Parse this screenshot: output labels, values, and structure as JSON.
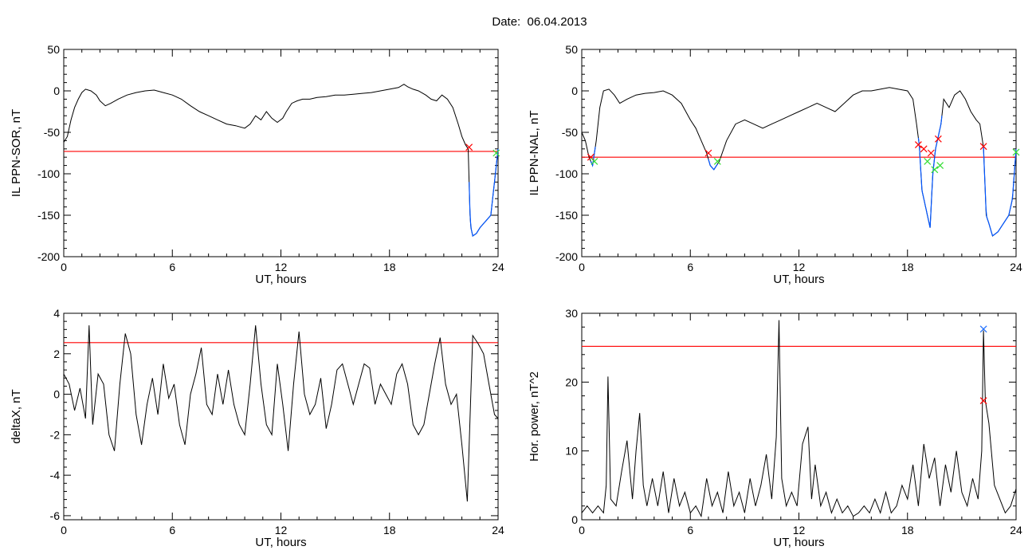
{
  "title": "Date:  06.04.2013",
  "colors": {
    "series": "#000000",
    "threshold": "#ff0000",
    "event_line": "#0055ff",
    "blue_mark": "#1f6fff",
    "green_mark": "#33dd33",
    "red_mark": "#ff0000"
  },
  "chart_data": [
    {
      "type": "line",
      "ylabel": "IL PPN-SOR, nT",
      "xlabel": "UT, hours",
      "xlim": [
        0,
        24
      ],
      "ylim": [
        -200,
        50
      ],
      "xticks": [
        0,
        6,
        12,
        18,
        24
      ],
      "yticks": [
        -200,
        -150,
        -100,
        -50,
        0,
        50
      ],
      "threshold": -73,
      "event_marks": [
        {
          "x": 22.4,
          "y": -68,
          "color": "red"
        },
        {
          "x": 23.9,
          "y": -75,
          "color": "green"
        }
      ],
      "event_ranges": [
        [
          22.4,
          24
        ]
      ],
      "series": {
        "x": [
          0,
          0.2,
          0.4,
          0.6,
          0.8,
          1,
          1.2,
          1.5,
          1.8,
          2,
          2.3,
          2.6,
          3,
          3.5,
          4,
          4.5,
          5,
          5.5,
          6,
          6.5,
          7,
          7.5,
          8,
          8.5,
          9,
          9.5,
          10,
          10.3,
          10.6,
          10.9,
          11.2,
          11.5,
          11.8,
          12.1,
          12.3,
          12.6,
          12.9,
          13.2,
          13.6,
          14,
          14.5,
          15,
          15.5,
          16,
          16.5,
          17,
          17.5,
          18,
          18.5,
          18.8,
          19,
          19.3,
          19.6,
          20,
          20.3,
          20.6,
          20.9,
          21.2,
          21.5,
          21.8,
          22,
          22.2,
          22.35,
          22.45,
          22.5,
          22.6,
          22.8,
          23,
          23.2,
          23.4,
          23.6,
          23.8,
          24
        ],
        "y": [
          -62,
          -55,
          -35,
          -20,
          -10,
          -2,
          2,
          0,
          -5,
          -12,
          -18,
          -15,
          -10,
          -5,
          -2,
          0,
          1,
          -2,
          -5,
          -10,
          -18,
          -25,
          -30,
          -35,
          -40,
          -42,
          -45,
          -40,
          -30,
          -35,
          -25,
          -33,
          -38,
          -33,
          -25,
          -15,
          -12,
          -10,
          -10,
          -8,
          -7,
          -5,
          -5,
          -4,
          -3,
          -2,
          0,
          2,
          4,
          8,
          5,
          2,
          0,
          -5,
          -10,
          -12,
          -5,
          -10,
          -20,
          -40,
          -55,
          -65,
          -70,
          -150,
          -165,
          -175,
          -172,
          -165,
          -160,
          -155,
          -150,
          -110,
          -70
        ]
      }
    },
    {
      "type": "line",
      "ylabel": "IL PPN-NAL, nT",
      "xlabel": "UT, hours",
      "xlim": [
        0,
        24
      ],
      "ylim": [
        -200,
        50
      ],
      "xticks": [
        0,
        6,
        12,
        18,
        24
      ],
      "yticks": [
        -200,
        -150,
        -100,
        -50,
        0,
        50
      ],
      "threshold": -80,
      "event_marks": [
        {
          "x": 0.5,
          "y": -80,
          "color": "red"
        },
        {
          "x": 0.7,
          "y": -85,
          "color": "green"
        },
        {
          "x": 7.0,
          "y": -75,
          "color": "red"
        },
        {
          "x": 7.5,
          "y": -85,
          "color": "green"
        },
        {
          "x": 18.6,
          "y": -65,
          "color": "red"
        },
        {
          "x": 18.9,
          "y": -70,
          "color": "red"
        },
        {
          "x": 19.1,
          "y": -85,
          "color": "green"
        },
        {
          "x": 19.3,
          "y": -75,
          "color": "red"
        },
        {
          "x": 19.5,
          "y": -95,
          "color": "green"
        },
        {
          "x": 19.7,
          "y": -58,
          "color": "red"
        },
        {
          "x": 19.8,
          "y": -90,
          "color": "green"
        },
        {
          "x": 22.2,
          "y": -67,
          "color": "red"
        },
        {
          "x": 24.0,
          "y": -74,
          "color": "green"
        }
      ],
      "event_ranges": [
        [
          0.5,
          0.75
        ],
        [
          7.0,
          7.5
        ],
        [
          18.6,
          19.9
        ],
        [
          22.2,
          24
        ]
      ],
      "series": {
        "x": [
          0,
          0.2,
          0.4,
          0.6,
          0.8,
          1.0,
          1.2,
          1.5,
          1.8,
          2.1,
          2.5,
          3,
          3.5,
          4,
          4.5,
          5,
          5.5,
          6,
          6.3,
          6.6,
          6.9,
          7.1,
          7.3,
          7.6,
          8,
          8.5,
          9,
          9.5,
          10,
          10.5,
          11,
          11.5,
          12,
          12.5,
          13,
          13.5,
          14,
          14.5,
          15,
          15.5,
          16,
          16.5,
          17,
          17.5,
          18,
          18.3,
          18.5,
          18.65,
          18.8,
          18.95,
          19.1,
          19.25,
          19.4,
          19.55,
          19.7,
          19.85,
          20,
          20.3,
          20.6,
          20.9,
          21.2,
          21.5,
          21.8,
          22,
          22.2,
          22.35,
          22.5,
          22.7,
          23,
          23.3,
          23.6,
          23.8,
          24
        ],
        "y": [
          -50,
          -60,
          -80,
          -90,
          -60,
          -20,
          0,
          2,
          -5,
          -15,
          -10,
          -5,
          -3,
          -2,
          0,
          -5,
          -15,
          -35,
          -45,
          -60,
          -75,
          -90,
          -95,
          -85,
          -60,
          -40,
          -35,
          -40,
          -45,
          -40,
          -35,
          -30,
          -25,
          -20,
          -15,
          -20,
          -25,
          -15,
          -5,
          0,
          0,
          2,
          4,
          2,
          0,
          -10,
          -40,
          -65,
          -120,
          -135,
          -150,
          -165,
          -100,
          -70,
          -55,
          -40,
          -10,
          -20,
          -5,
          0,
          -10,
          -25,
          -35,
          -40,
          -68,
          -150,
          -160,
          -175,
          -170,
          -160,
          -150,
          -130,
          -70
        ]
      }
    },
    {
      "type": "line",
      "ylabel": "deltaX, nT",
      "xlabel": "UT, hours",
      "xlim": [
        0,
        24
      ],
      "ylim": [
        -6.2,
        4
      ],
      "xticks": [
        0,
        6,
        12,
        18,
        24
      ],
      "yticks": [
        -6,
        -4,
        -2,
        0,
        2,
        4
      ],
      "threshold": 2.55,
      "series": {
        "x": [
          0,
          0.3,
          0.6,
          0.9,
          1.2,
          1.4,
          1.6,
          1.9,
          2.2,
          2.5,
          2.8,
          3.1,
          3.4,
          3.7,
          4,
          4.3,
          4.6,
          4.9,
          5.2,
          5.5,
          5.8,
          6.1,
          6.4,
          6.7,
          7,
          7.3,
          7.6,
          7.9,
          8.2,
          8.5,
          8.8,
          9.1,
          9.4,
          9.7,
          10,
          10.3,
          10.6,
          10.9,
          11.2,
          11.5,
          11.8,
          12.1,
          12.4,
          12.7,
          13,
          13.3,
          13.6,
          13.9,
          14.2,
          14.5,
          14.8,
          15.1,
          15.4,
          15.7,
          16,
          16.3,
          16.6,
          16.9,
          17.2,
          17.5,
          17.8,
          18.1,
          18.4,
          18.7,
          19,
          19.3,
          19.6,
          19.9,
          20.2,
          20.5,
          20.8,
          21.1,
          21.4,
          21.7,
          22,
          22.3,
          22.6,
          22.9,
          23.2,
          23.5,
          23.8,
          24
        ],
        "y": [
          1.0,
          0.5,
          -0.8,
          0.3,
          -1.2,
          3.4,
          -1.5,
          1.0,
          0.5,
          -2.0,
          -2.8,
          0.5,
          3.0,
          2.0,
          -1.0,
          -2.5,
          -0.5,
          0.8,
          -1.0,
          1.5,
          -0.2,
          0.5,
          -1.5,
          -2.5,
          0,
          1.0,
          2.3,
          -0.5,
          -1.0,
          1.0,
          -0.5,
          1.2,
          -0.5,
          -1.5,
          -2.0,
          0.5,
          3.4,
          0.5,
          -1.5,
          -2.0,
          1.5,
          -0.5,
          -2.8,
          0.5,
          3.1,
          0.0,
          -1.0,
          -0.5,
          0.8,
          -1.7,
          -0.5,
          1.2,
          1.5,
          0.5,
          -0.5,
          0.5,
          1.5,
          1.3,
          -0.5,
          0.5,
          0.0,
          -0.5,
          1.0,
          1.5,
          0.5,
          -1.5,
          -2.0,
          -1.5,
          0.0,
          1.5,
          2.8,
          0.5,
          -0.5,
          0.0,
          -2.5,
          -5.3,
          2.9,
          2.5,
          2.0,
          0.5,
          -1.0,
          -1.2
        ]
      }
    },
    {
      "type": "line",
      "ylabel": "Hor. power, nT^2",
      "xlabel": "UT, hours",
      "xlim": [
        0,
        24
      ],
      "ylim": [
        0,
        30
      ],
      "xticks": [
        0,
        6,
        12,
        18,
        24
      ],
      "yticks": [
        0,
        10,
        20,
        30
      ],
      "threshold": 25.2,
      "event_marks": [
        {
          "x": 22.2,
          "y": 27.7,
          "color": "blue"
        },
        {
          "x": 22.2,
          "y": 17.3,
          "color": "red"
        }
      ],
      "series": {
        "x": [
          0,
          0.3,
          0.6,
          0.9,
          1.2,
          1.35,
          1.45,
          1.6,
          1.9,
          2.2,
          2.5,
          2.8,
          3.0,
          3.2,
          3.4,
          3.6,
          3.9,
          4.2,
          4.5,
          4.8,
          5.1,
          5.4,
          5.7,
          6.0,
          6.3,
          6.6,
          6.9,
          7.2,
          7.5,
          7.8,
          8.1,
          8.4,
          8.7,
          9.0,
          9.3,
          9.6,
          9.9,
          10.2,
          10.5,
          10.75,
          10.9,
          11.05,
          11.3,
          11.6,
          11.9,
          12.2,
          12.5,
          12.7,
          12.9,
          13.2,
          13.5,
          13.8,
          14.1,
          14.4,
          14.7,
          15.0,
          15.3,
          15.6,
          15.9,
          16.2,
          16.5,
          16.8,
          17.1,
          17.4,
          17.7,
          18.0,
          18.3,
          18.6,
          18.9,
          19.2,
          19.5,
          19.8,
          20.1,
          20.4,
          20.7,
          21.0,
          21.3,
          21.6,
          21.9,
          22.1,
          22.2,
          22.3,
          22.5,
          22.8,
          23.1,
          23.4,
          23.7,
          24
        ],
        "y": [
          1,
          2,
          1,
          2,
          1,
          5,
          20.8,
          3,
          2,
          7,
          11.5,
          3,
          10,
          15.5,
          5,
          2,
          6,
          2,
          7,
          1,
          6,
          2,
          4,
          1,
          2,
          0.5,
          6,
          2,
          4,
          1,
          7,
          2,
          4,
          1,
          6,
          2,
          5,
          9.5,
          3,
          12,
          29,
          6,
          2,
          4,
          2,
          11,
          13.5,
          3,
          8,
          2,
          4,
          1,
          3,
          1,
          2,
          0.5,
          1,
          2,
          1,
          3,
          1,
          4,
          1,
          2,
          5,
          3,
          8,
          2,
          11,
          6,
          9,
          2,
          8,
          4,
          10,
          4,
          2,
          6,
          3,
          10,
          27.5,
          17.3,
          14,
          5,
          3,
          1,
          2,
          4.5
        ]
      }
    }
  ]
}
